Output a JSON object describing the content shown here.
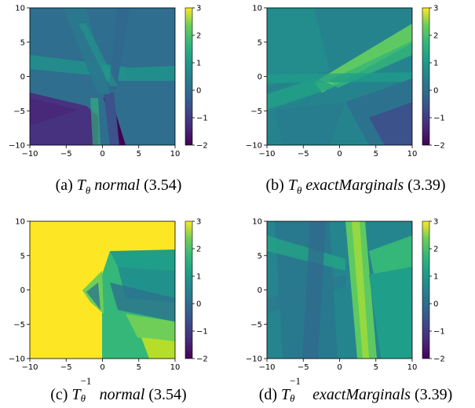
{
  "chart_data": [
    {
      "type": "heatmap",
      "xlim": [
        -10,
        10
      ],
      "ylim": [
        -10,
        10
      ],
      "xticks": [
        -10,
        -5,
        0,
        5,
        10
      ],
      "yticks": [
        -10,
        -5,
        0,
        5,
        10
      ],
      "colorbar": {
        "range": [
          -2,
          3
        ],
        "ticks": [
          3,
          2,
          1,
          0,
          -1,
          -2
        ],
        "colormap": "viridis"
      },
      "caption": {
        "label": "(a)",
        "symbol": "T",
        "subscript": "θ",
        "superscript": "",
        "method": "normal",
        "score": "(3.54)"
      }
    },
    {
      "type": "heatmap",
      "xlim": [
        -10,
        10
      ],
      "ylim": [
        -10,
        10
      ],
      "xticks": [
        -10,
        -5,
        0,
        5,
        10
      ],
      "yticks": [
        -10,
        -5,
        0,
        5,
        10
      ],
      "colorbar": {
        "range": [
          -2,
          3
        ],
        "ticks": [
          3,
          2,
          1,
          0,
          -1,
          -2
        ],
        "colormap": "viridis"
      },
      "caption": {
        "label": "(b)",
        "symbol": "T",
        "subscript": "θ",
        "superscript": "",
        "method": "exactMarginals",
        "score": "(3.39)"
      }
    },
    {
      "type": "heatmap",
      "xlim": [
        -10,
        10
      ],
      "ylim": [
        -10,
        10
      ],
      "xticks": [
        -10,
        -5,
        0,
        5,
        10
      ],
      "yticks": [
        -10,
        -5,
        0,
        5,
        10
      ],
      "colorbar": {
        "range": [
          -2,
          3
        ],
        "ticks": [
          3,
          2,
          1,
          0,
          -1,
          -2
        ],
        "colormap": "viridis"
      },
      "caption": {
        "label": "(c)",
        "symbol": "T",
        "subscript": "θ",
        "superscript": "−1",
        "method": "normal",
        "score": "(3.54)"
      }
    },
    {
      "type": "heatmap",
      "xlim": [
        -10,
        10
      ],
      "ylim": [
        -10,
        10
      ],
      "xticks": [
        -10,
        -5,
        0,
        5,
        10
      ],
      "yticks": [
        -10,
        -5,
        0,
        5,
        10
      ],
      "colorbar": {
        "range": [
          -2,
          3
        ],
        "ticks": [
          3,
          2,
          1,
          0,
          -1,
          -2
        ],
        "colormap": "viridis"
      },
      "caption": {
        "label": "(d)",
        "symbol": "T",
        "subscript": "θ",
        "superscript": "−1",
        "method": "exactMarginals",
        "score": "(3.39)"
      }
    }
  ],
  "colors": {
    "viridis_low": "#440154",
    "viridis_mid": "#21918c",
    "viridis_high": "#fde725"
  }
}
